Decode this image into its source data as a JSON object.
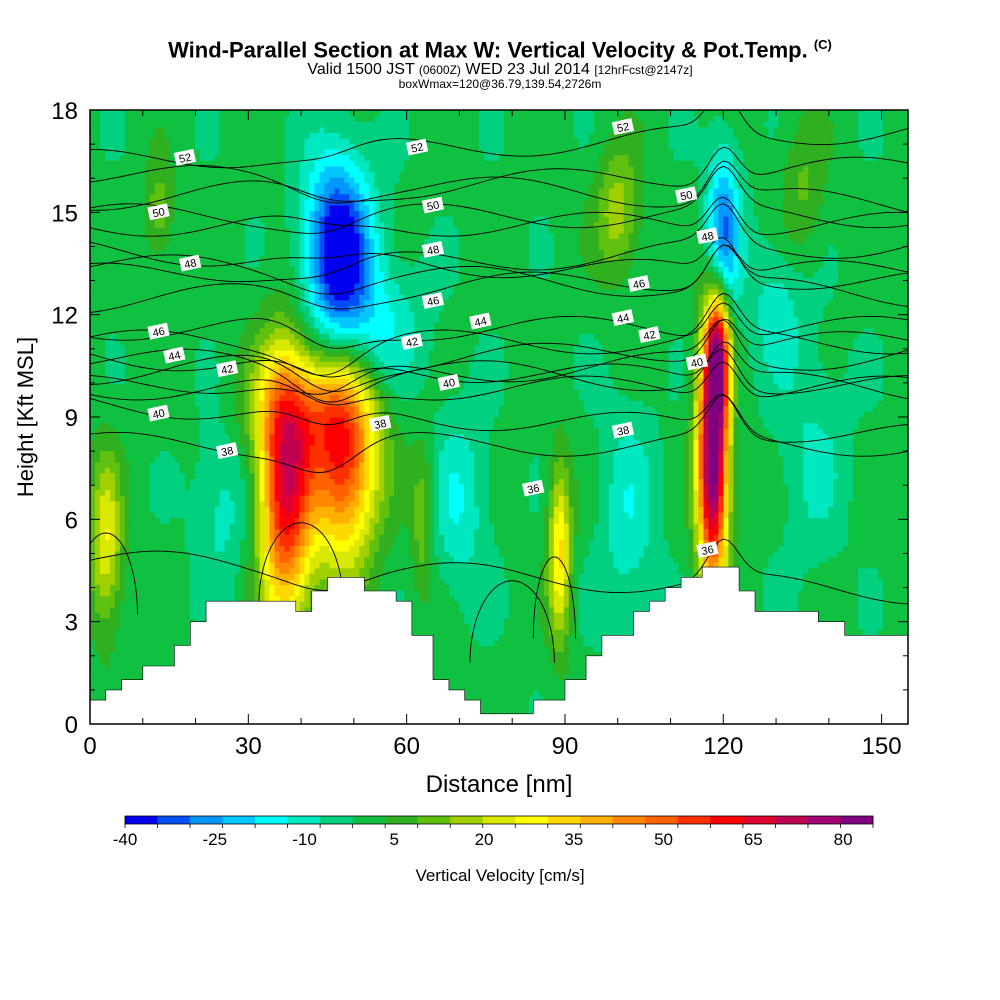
{
  "title": {
    "main": "Wind-Parallel Section at Max W: Vertical Velocity & Pot.Temp.",
    "copyright": "(C)",
    "valid_prefix": "Valid 1500 JST",
    "valid_zulu": "(0600Z)",
    "valid_date": "WED 23 Jul 2014",
    "forecast": "[12hrFcst@2147z]",
    "box_info": "boxWmax=120@36.79,139.54,2726m"
  },
  "chart_data": {
    "type": "heatmap",
    "xlabel": "Distance [nm]",
    "ylabel": "Height [Kft MSL]",
    "xlim": [
      0,
      155
    ],
    "ylim": [
      0,
      18
    ],
    "x_ticks": [
      0,
      30,
      60,
      90,
      120,
      150
    ],
    "y_ticks": [
      0,
      3,
      6,
      9,
      12,
      15,
      18
    ],
    "colorbar": {
      "label": "Vertical Velocity [cm/s]",
      "tick_labels": [
        "-40",
        "-25",
        "-10",
        "5",
        "20",
        "35",
        "50",
        "65",
        "80"
      ],
      "range": [
        -40,
        85
      ],
      "colors": [
        "#0000f0",
        "#0050f5",
        "#0096fa",
        "#00c8ff",
        "#00ffff",
        "#00e8c0",
        "#00d080",
        "#10c040",
        "#30b020",
        "#60c010",
        "#a0d000",
        "#d8e800",
        "#ffff00",
        "#ffd800",
        "#ffb000",
        "#ff8800",
        "#ff6000",
        "#ff3000",
        "#ff0000",
        "#e00030",
        "#c00050",
        "#a00070",
        "#800080"
      ]
    },
    "background_velocity": 0,
    "updraft_cores": [
      {
        "x": 3,
        "y": 5.3,
        "peak": 25,
        "sx": 2.2,
        "sy": 1.8
      },
      {
        "x": 37,
        "y": 6.8,
        "peak": 62,
        "sx": 3.5,
        "sy": 2.7
      },
      {
        "x": 48,
        "y": 7.6,
        "peak": 52,
        "sx": 4.5,
        "sy": 2.1
      },
      {
        "x": 42,
        "y": 9.3,
        "peak": 25,
        "sx": 8,
        "sy": 1.3
      },
      {
        "x": 89,
        "y": 5.0,
        "peak": 32,
        "sx": 1.5,
        "sy": 1.8
      },
      {
        "x": 118,
        "y": 7.8,
        "peak": 88,
        "sx": 2.0,
        "sy": 2.6
      },
      {
        "x": 119,
        "y": 10.8,
        "peak": 55,
        "sx": 1.5,
        "sy": 1.3
      },
      {
        "x": 100,
        "y": 15,
        "peak": 18,
        "sx": 3,
        "sy": 1.3
      },
      {
        "x": 13,
        "y": 15,
        "peak": 13,
        "sx": 2,
        "sy": 1
      },
      {
        "x": 63,
        "y": 6,
        "peak": 14,
        "sx": 1.5,
        "sy": 1.6
      },
      {
        "x": 135,
        "y": 15.5,
        "peak": 10,
        "sx": 3,
        "sy": 1.6
      }
    ],
    "downdraft_cores": [
      {
        "x": 47,
        "y": 14.0,
        "peak": -42,
        "sx": 4.5,
        "sy": 1.9
      },
      {
        "x": 120,
        "y": 14.5,
        "peak": -30,
        "sx": 2.2,
        "sy": 1.7
      },
      {
        "x": 53,
        "y": 11.5,
        "peak": -15,
        "sx": 7,
        "sy": 1.5
      },
      {
        "x": 25,
        "y": 6.5,
        "peak": -10,
        "sx": 4,
        "sy": 1.8
      },
      {
        "x": 70,
        "y": 6.5,
        "peak": -12,
        "sx": 4,
        "sy": 2
      },
      {
        "x": 102,
        "y": 6,
        "peak": -11,
        "sx": 4,
        "sy": 2.5
      },
      {
        "x": 130,
        "y": 12.5,
        "peak": -10,
        "sx": 4,
        "sy": 1.5
      },
      {
        "x": 137,
        "y": 8,
        "peak": -8,
        "sx": 5,
        "sy": 2.5
      }
    ],
    "terrain": [
      [
        0,
        0.7
      ],
      [
        3,
        0.7
      ],
      [
        3,
        1.0
      ],
      [
        6,
        1.0
      ],
      [
        6,
        1.3
      ],
      [
        10,
        1.3
      ],
      [
        10,
        1.7
      ],
      [
        16,
        1.7
      ],
      [
        16,
        2.3
      ],
      [
        19,
        2.3
      ],
      [
        19,
        3.0
      ],
      [
        22,
        3.0
      ],
      [
        22,
        3.6
      ],
      [
        39,
        3.6
      ],
      [
        39,
        3.3
      ],
      [
        42,
        3.3
      ],
      [
        42,
        3.9
      ],
      [
        45,
        3.9
      ],
      [
        45,
        4.3
      ],
      [
        52,
        4.3
      ],
      [
        52,
        3.9
      ],
      [
        58,
        3.9
      ],
      [
        58,
        3.6
      ],
      [
        61,
        3.6
      ],
      [
        61,
        2.6
      ],
      [
        65,
        2.6
      ],
      [
        65,
        1.3
      ],
      [
        68,
        1.3
      ],
      [
        68,
        1.0
      ],
      [
        71,
        1.0
      ],
      [
        71,
        0.7
      ],
      [
        74,
        0.7
      ],
      [
        74,
        0.3
      ],
      [
        77,
        0.3
      ],
      [
        77,
        0.3
      ],
      [
        84,
        0.3
      ],
      [
        84,
        0.7
      ],
      [
        90,
        0.7
      ],
      [
        90,
        1.3
      ],
      [
        94,
        1.3
      ],
      [
        94,
        2.0
      ],
      [
        97,
        2.0
      ],
      [
        97,
        2.6
      ],
      [
        103,
        2.6
      ],
      [
        103,
        3.3
      ],
      [
        106,
        3.3
      ],
      [
        106,
        3.6
      ],
      [
        109,
        3.6
      ],
      [
        109,
        4.0
      ],
      [
        112,
        4.0
      ],
      [
        112,
        4.3
      ],
      [
        116,
        4.3
      ],
      [
        116,
        4.6
      ],
      [
        123,
        4.6
      ],
      [
        123,
        3.9
      ],
      [
        126,
        3.9
      ],
      [
        126,
        3.3
      ],
      [
        138,
        3.3
      ],
      [
        138,
        3.0
      ],
      [
        143,
        3.0
      ],
      [
        143,
        2.6
      ],
      [
        155,
        2.6
      ]
    ],
    "theta_contours": [
      {
        "level": 36,
        "base": 4.8,
        "label": "36"
      },
      {
        "level": 38,
        "base": 8.2,
        "label": "38"
      },
      {
        "level": 40,
        "base": 9.9,
        "label": "40"
      },
      {
        "level": 42,
        "base": 10.8,
        "label": "42"
      },
      {
        "level": 44,
        "base": 11.6,
        "label": "44"
      },
      {
        "level": 46,
        "base": 12.4,
        "label": "46"
      },
      {
        "level": 48,
        "base": 13.5,
        "label": "48"
      },
      {
        "level": 50,
        "base": 14.9,
        "label": "50"
      },
      {
        "level": 52,
        "base": 16.5,
        "label": "52"
      }
    ],
    "contour_labels": [
      {
        "text": "52",
        "x": 18,
        "y": 16.6
      },
      {
        "text": "52",
        "x": 62,
        "y": 16.9
      },
      {
        "text": "52",
        "x": 101,
        "y": 17.5
      },
      {
        "text": "50",
        "x": 13,
        "y": 15.0
      },
      {
        "text": "50",
        "x": 65,
        "y": 15.2
      },
      {
        "text": "50",
        "x": 113,
        "y": 15.5
      },
      {
        "text": "48",
        "x": 19,
        "y": 13.5
      },
      {
        "text": "48",
        "x": 65,
        "y": 13.9
      },
      {
        "text": "48",
        "x": 117,
        "y": 14.3
      },
      {
        "text": "46",
        "x": 13,
        "y": 11.5
      },
      {
        "text": "46",
        "x": 65,
        "y": 12.4
      },
      {
        "text": "46",
        "x": 104,
        "y": 12.9
      },
      {
        "text": "44",
        "x": 16,
        "y": 10.8
      },
      {
        "text": "44",
        "x": 74,
        "y": 11.8
      },
      {
        "text": "44",
        "x": 101,
        "y": 11.9
      },
      {
        "text": "42",
        "x": 26,
        "y": 10.4
      },
      {
        "text": "42",
        "x": 61,
        "y": 11.2
      },
      {
        "text": "42",
        "x": 106,
        "y": 11.4
      },
      {
        "text": "40",
        "x": 13,
        "y": 9.1
      },
      {
        "text": "40",
        "x": 68,
        "y": 10.0
      },
      {
        "text": "40",
        "x": 115,
        "y": 10.6
      },
      {
        "text": "38",
        "x": 26,
        "y": 8.0
      },
      {
        "text": "38",
        "x": 55,
        "y": 8.8
      },
      {
        "text": "38",
        "x": 101,
        "y": 8.6
      },
      {
        "text": "36",
        "x": 84,
        "y": 6.9
      },
      {
        "text": "36",
        "x": 117,
        "y": 5.1
      }
    ]
  }
}
